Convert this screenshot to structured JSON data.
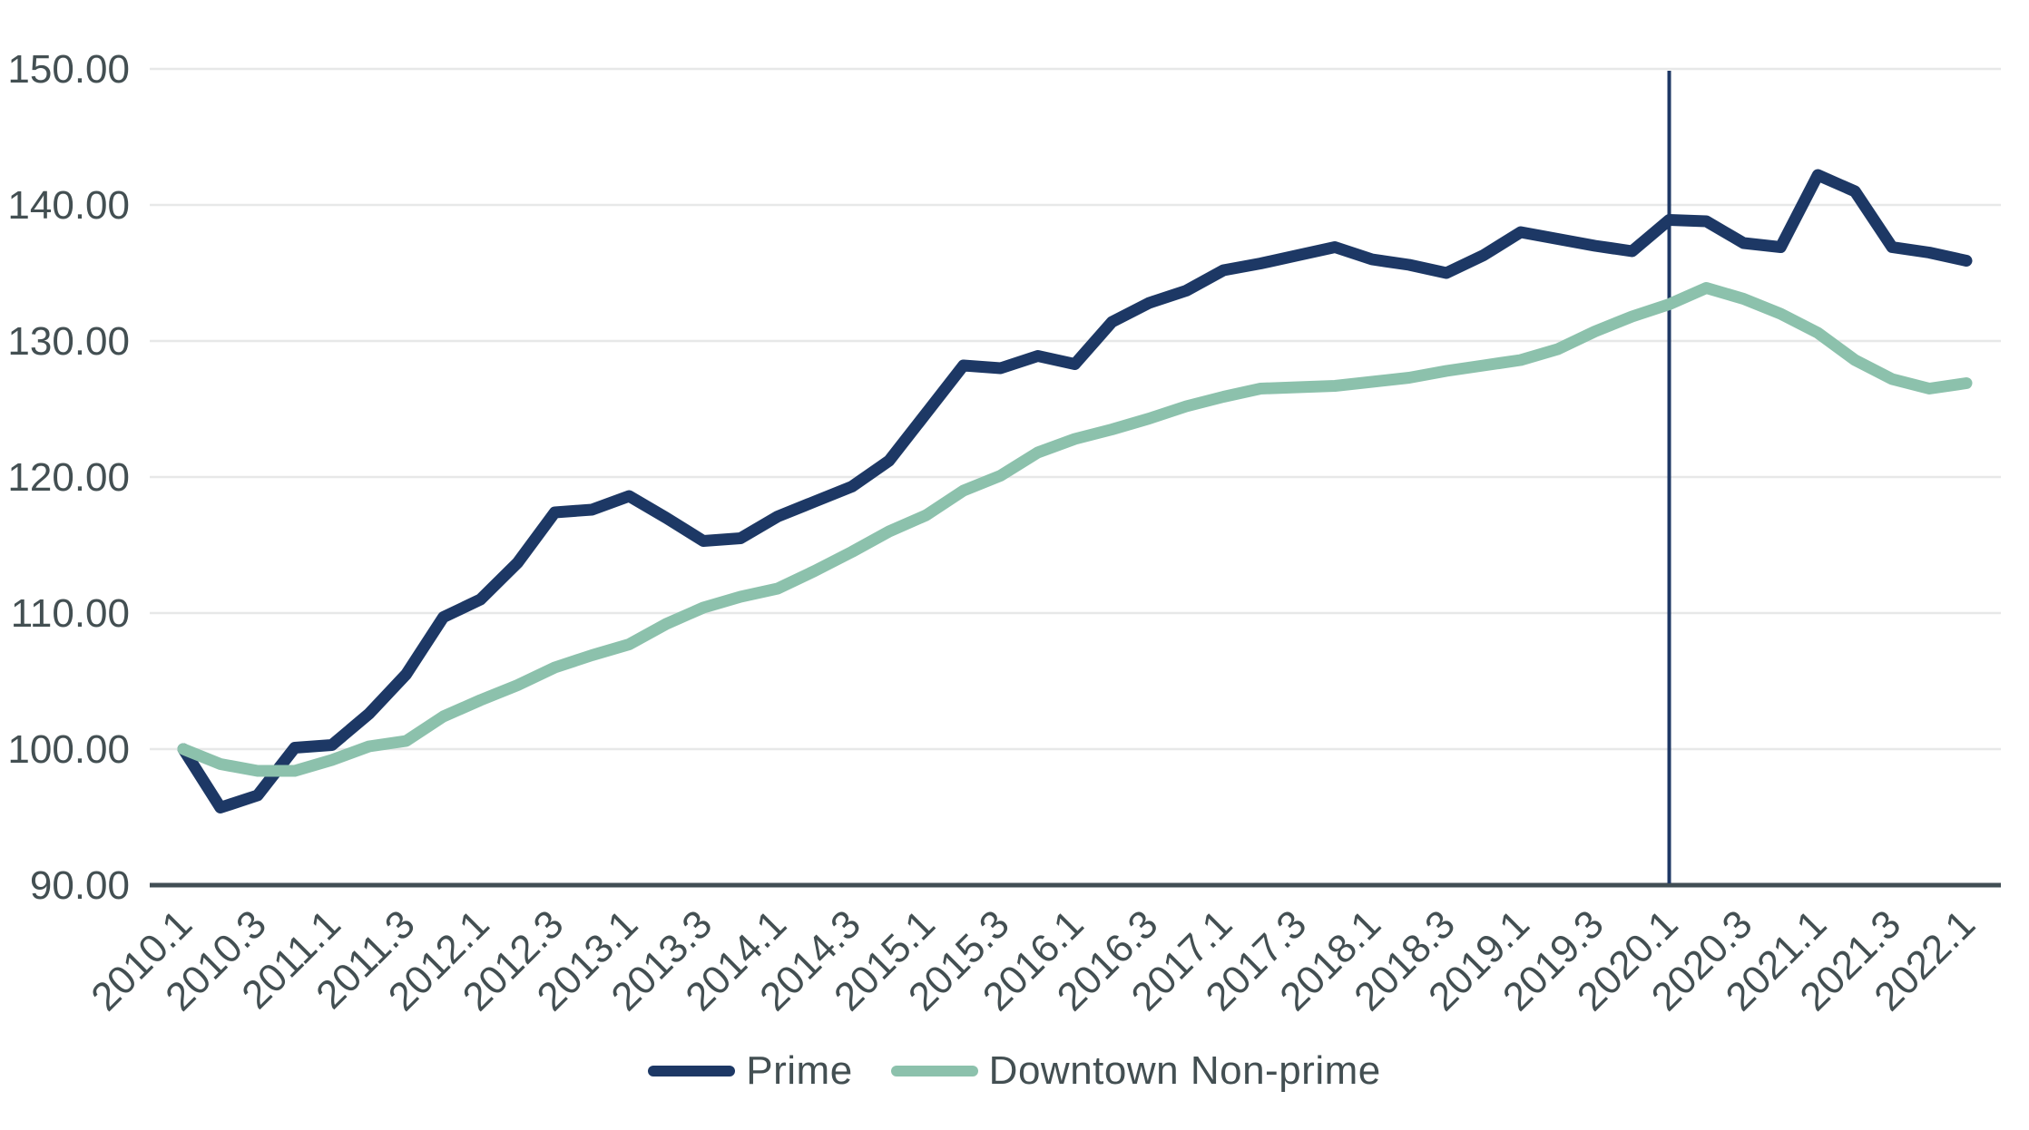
{
  "chart_data": {
    "type": "line",
    "title": "",
    "xlabel": "",
    "ylabel": "",
    "ylim": [
      90,
      150
    ],
    "grid": "horizontal",
    "y_tick_labels": [
      "150.00",
      "140.00",
      "130.00",
      "120.00",
      "110.00",
      "100.00",
      "90.00"
    ],
    "x_tick_labels": [
      "2010.1",
      "2010.3",
      "2011.1",
      "2011.3",
      "2012.1",
      "2012.3",
      "2013.1",
      "2013.3",
      "2014.1",
      "2014.3",
      "2015.1",
      "2015.3",
      "2016.1",
      "2016.3",
      "2017.1",
      "2017.3",
      "2018.1",
      "2018.3",
      "2019.1",
      "2019.3",
      "2020.1",
      "2020.3",
      "2021.1",
      "2021.3",
      "2022.1"
    ],
    "categories": [
      "2010.1",
      "2010.2",
      "2010.3",
      "2010.4",
      "2011.1",
      "2011.2",
      "2011.3",
      "2011.4",
      "2012.1",
      "2012.2",
      "2012.3",
      "2012.4",
      "2013.1",
      "2013.2",
      "2013.3",
      "2013.4",
      "2014.1",
      "2014.2",
      "2014.3",
      "2014.4",
      "2015.1",
      "2015.2",
      "2015.3",
      "2015.4",
      "2016.1",
      "2016.2",
      "2016.3",
      "2016.4",
      "2017.1",
      "2017.2",
      "2017.3",
      "2017.4",
      "2018.1",
      "2018.2",
      "2018.3",
      "2018.4",
      "2019.1",
      "2019.2",
      "2019.3",
      "2019.4",
      "2020.1",
      "2020.2",
      "2020.3",
      "2020.4",
      "2021.1",
      "2021.2",
      "2021.3",
      "2021.4",
      "2022.1"
    ],
    "series": [
      {
        "name": "Prime",
        "color": "#1d3865",
        "values": [
          100.0,
          95.7,
          96.6,
          100.1,
          100.3,
          102.6,
          105.5,
          109.7,
          111.0,
          113.7,
          117.4,
          117.6,
          118.6,
          117.0,
          115.3,
          115.5,
          117.1,
          118.2,
          119.3,
          121.2,
          124.7,
          128.2,
          128.0,
          128.9,
          128.3,
          131.4,
          132.8,
          133.7,
          135.2,
          135.7,
          136.3,
          136.9,
          136.0,
          135.6,
          135.0,
          136.3,
          138.0,
          137.5,
          137.0,
          136.6,
          138.9,
          138.8,
          137.2,
          136.9,
          142.2,
          141.0,
          136.9,
          136.5,
          135.9
        ]
      },
      {
        "name": "Downtown Non-prime",
        "color": "#8cc1ac",
        "values": [
          100.0,
          98.9,
          98.4,
          98.4,
          99.2,
          100.2,
          100.6,
          102.4,
          103.6,
          104.7,
          106.0,
          106.9,
          107.7,
          109.2,
          110.4,
          111.2,
          111.8,
          113.1,
          114.5,
          116.0,
          117.2,
          119.0,
          120.1,
          121.8,
          122.8,
          123.5,
          124.3,
          125.2,
          125.9,
          126.5,
          126.6,
          126.7,
          127.0,
          127.3,
          127.8,
          128.2,
          128.6,
          129.4,
          130.7,
          131.8,
          132.7,
          133.9,
          133.1,
          132.0,
          130.6,
          128.6,
          127.2,
          126.5,
          126.9
        ]
      }
    ],
    "vline": {
      "at_category": "2020.1",
      "color": "#1e3865"
    },
    "legend_position": "bottom",
    "colors": {
      "grid_line": "#e7e8e8",
      "axis_line": "#414e54",
      "tick_text": "#434f52",
      "background": "#ffffff"
    }
  }
}
